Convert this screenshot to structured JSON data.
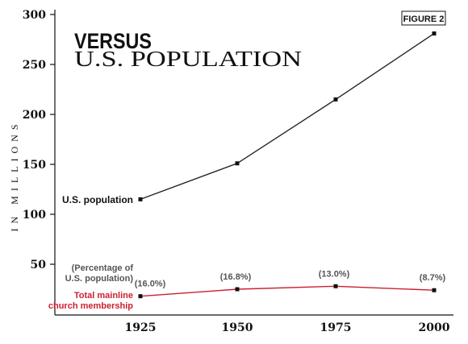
{
  "figure_label": "FIGURE 2",
  "title_line1": "VERSUS",
  "title_line2": "U.S. POPULATION",
  "colors": {
    "population": "#222222",
    "membership": "#cc1f2e",
    "axis": "#111111"
  },
  "chart_data": {
    "type": "line",
    "title": "VERSUS U.S. POPULATION",
    "ylabel": "IN MILLIONS",
    "xlabel": "",
    "x": [
      1925,
      1950,
      1975,
      2000
    ],
    "x_tick_labels": [
      "1925",
      "1950",
      "1975",
      "2000"
    ],
    "ylim": [
      0,
      300
    ],
    "yticks": [
      50,
      100,
      150,
      200,
      250,
      300
    ],
    "grid": false,
    "legend": "inline labels at left of each series",
    "series": [
      {
        "name": "U.S. population",
        "values": [
          115,
          151,
          215,
          281
        ],
        "color": "#222222"
      },
      {
        "name": "Total mainline church membership",
        "values": [
          18,
          25,
          28,
          24
        ],
        "color": "#cc1f2e",
        "data_labels": [
          "(16.0%)",
          "(16.8%)",
          "(13.0%)",
          "(8.7%)"
        ]
      }
    ],
    "annotations": {
      "percentage_note_line1": "(Percentage of",
      "percentage_note_line2": "U.S. population)",
      "membership_label_line1": "Total mainline",
      "membership_label_line2": "church membership"
    }
  }
}
